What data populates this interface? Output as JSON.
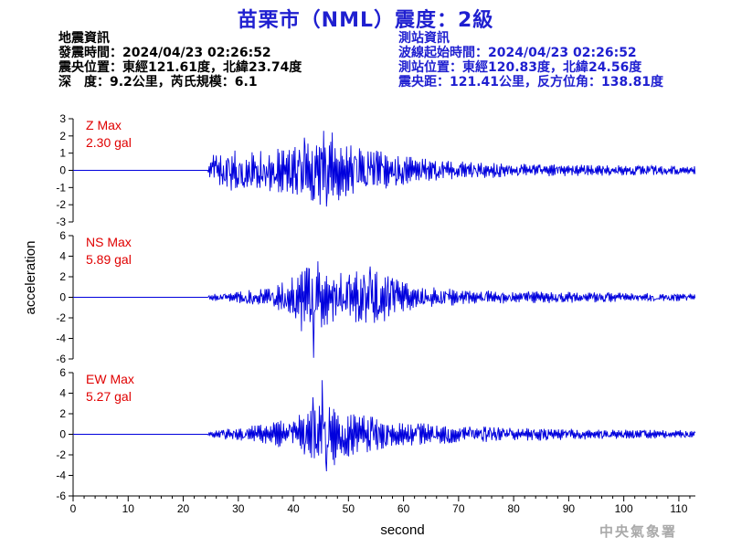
{
  "title": "苗栗市（NML）震度：2級",
  "quake_info": {
    "heading": "地震資訊",
    "origin_time": "發震時間：2024/04/23 02:26:52",
    "epicenter": "震央位置：東經121.61度，北緯23.74度",
    "depth_magnitude": "深　度：9.2公里，芮氏規模：6.1"
  },
  "station_info": {
    "heading": "測站資訊",
    "wave_start": "波線起始時間：2024/04/23 02:26:52",
    "station_location": "測站位置：東經120.83度，北緯24.56度",
    "distance_azimuth": "震央距：121.41公里，反方位角：138.81度"
  },
  "credit": "中央氣象署",
  "colors": {
    "trace": "#0000dd",
    "max_label": "#e00000",
    "title": "#1f1fd0",
    "axis": "#000000"
  },
  "chart_data": {
    "type": "line",
    "xlabel": "second",
    "ylabel": "acceleration",
    "xlim": [
      0,
      113
    ],
    "xticks": [
      0,
      10,
      20,
      30,
      40,
      50,
      60,
      70,
      80,
      90,
      100,
      110
    ],
    "onset_s": 24.5,
    "panels": [
      {
        "component": "Z",
        "label": "Z Max",
        "max_text": "2.30 gal",
        "max_value": 2.3,
        "ylim": [
          -3,
          3
        ],
        "yticks": [
          -3,
          -2,
          -1,
          0,
          1,
          2,
          3
        ],
        "envelope": [
          [
            0,
            0
          ],
          [
            24,
            0
          ],
          [
            24.5,
            0.3
          ],
          [
            25.5,
            1.0
          ],
          [
            28,
            1.2
          ],
          [
            33,
            1.1
          ],
          [
            38,
            1.3
          ],
          [
            42,
            1.5
          ],
          [
            45,
            2.1
          ],
          [
            48,
            1.8
          ],
          [
            52,
            1.3
          ],
          [
            57,
            1.2
          ],
          [
            60,
            0.9
          ],
          [
            66,
            0.6
          ],
          [
            75,
            0.45
          ],
          [
            85,
            0.35
          ],
          [
            100,
            0.3
          ],
          [
            113,
            0.25
          ]
        ],
        "peaks": [
          {
            "t": 45.5,
            "v": 2.3
          },
          {
            "t": 46.0,
            "v": -2.1
          },
          {
            "t": 47.0,
            "v": 2.2
          },
          {
            "t": 42.0,
            "v": 1.9
          }
        ]
      },
      {
        "component": "NS",
        "label": "NS Max",
        "max_text": "5.89 gal",
        "max_value": 5.89,
        "ylim": [
          -6,
          6
        ],
        "yticks": [
          -6,
          -4,
          -2,
          0,
          2,
          4,
          6
        ],
        "envelope": [
          [
            0,
            0
          ],
          [
            24,
            0
          ],
          [
            25,
            0.3
          ],
          [
            30,
            0.6
          ],
          [
            36,
            0.9
          ],
          [
            40,
            2.0
          ],
          [
            43,
            3.3
          ],
          [
            46,
            2.8
          ],
          [
            50,
            2.6
          ],
          [
            55,
            2.8
          ],
          [
            58,
            1.9
          ],
          [
            62,
            1.1
          ],
          [
            70,
            0.8
          ],
          [
            80,
            0.6
          ],
          [
            90,
            0.55
          ],
          [
            100,
            0.45
          ],
          [
            113,
            0.35
          ]
        ],
        "peaks": [
          {
            "t": 43.7,
            "v": -5.89
          },
          {
            "t": 44.5,
            "v": 3.5
          },
          {
            "t": 41.5,
            "v": -3.3
          },
          {
            "t": 54.0,
            "v": 3.0
          }
        ]
      },
      {
        "component": "EW",
        "label": "EW Max",
        "max_text": "5.27 gal",
        "max_value": 5.27,
        "ylim": [
          -6,
          6
        ],
        "yticks": [
          -6,
          -4,
          -2,
          0,
          2,
          4,
          6
        ],
        "envelope": [
          [
            0,
            0
          ],
          [
            24,
            0
          ],
          [
            25,
            0.3
          ],
          [
            30,
            0.7
          ],
          [
            35,
            1.0
          ],
          [
            40,
            1.6
          ],
          [
            43,
            2.4
          ],
          [
            45,
            3.0
          ],
          [
            48,
            2.5
          ],
          [
            52,
            1.9
          ],
          [
            56,
            1.6
          ],
          [
            60,
            1.2
          ],
          [
            68,
            0.9
          ],
          [
            78,
            0.7
          ],
          [
            90,
            0.55
          ],
          [
            100,
            0.45
          ],
          [
            113,
            0.4
          ]
        ],
        "peaks": [
          {
            "t": 45.3,
            "v": 5.27
          },
          {
            "t": 46.0,
            "v": -3.6
          },
          {
            "t": 43.5,
            "v": 3.6
          },
          {
            "t": 47.5,
            "v": -3.0
          }
        ]
      }
    ]
  }
}
